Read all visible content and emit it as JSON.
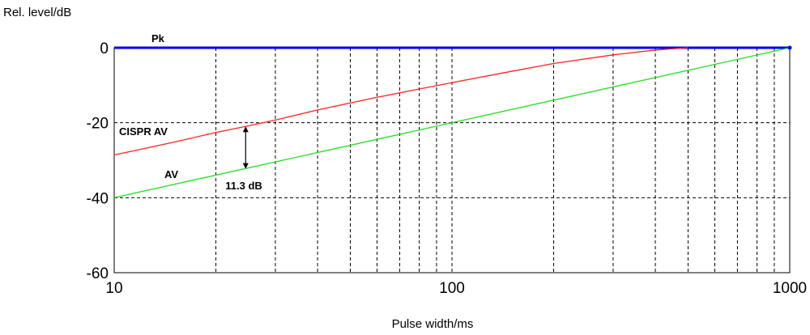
{
  "chart_data": {
    "type": "line",
    "ylabel": "Rel. level/dB",
    "xlabel": "Pulse width/ms",
    "x_scale": "log",
    "xlim": [
      10,
      1000
    ],
    "ylim": [
      -60,
      0
    ],
    "grid": true,
    "x_ticks": [
      "10",
      "100",
      "1000"
    ],
    "y_ticks": [
      "0",
      "-20",
      "-40",
      "-60"
    ],
    "series": [
      {
        "name": "Pk",
        "color": "#0000ee",
        "points": [
          [
            10,
            0
          ],
          [
            1000,
            0
          ]
        ]
      },
      {
        "name": "CISPR AV",
        "color": "#ff2020",
        "points": [
          [
            10,
            -28.6
          ],
          [
            15,
            -25.2
          ],
          [
            20,
            -22.6
          ],
          [
            24.5,
            -21.0
          ],
          [
            30,
            -19.3
          ],
          [
            40,
            -16.6
          ],
          [
            60,
            -13.2
          ],
          [
            100,
            -9.3
          ],
          [
            150,
            -6.3
          ],
          [
            200,
            -4.2
          ],
          [
            300,
            -1.9
          ],
          [
            400,
            -0.6
          ],
          [
            500,
            0
          ]
        ]
      },
      {
        "name": "AV",
        "color": "#22dd22",
        "points": [
          [
            10,
            -40
          ],
          [
            1000,
            0
          ]
        ]
      }
    ],
    "annotations": [
      {
        "text": "11.3 dB",
        "x": 24.5,
        "y_from": -21.0,
        "y_to": -32.3
      }
    ]
  }
}
